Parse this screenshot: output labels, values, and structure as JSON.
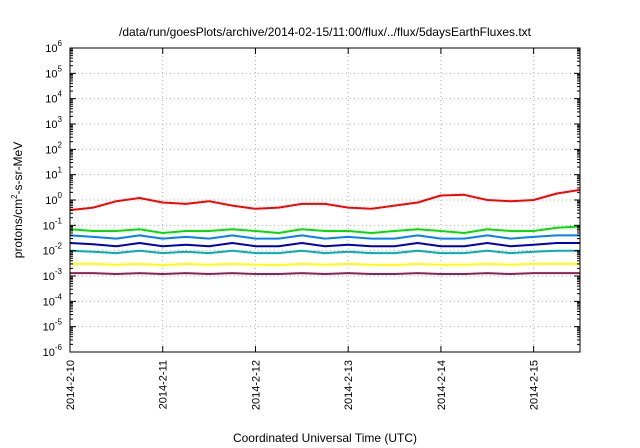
{
  "chart_data": {
    "type": "line",
    "title": "/data/run/goesPlots/archive/2014-02-15/11:00/flux/../flux/5daysEarthFluxes.txt",
    "xlabel": "Coordinated Universal Time (UTC)",
    "ylabel": {
      "pre": "protons/cm",
      "sup": "2",
      "post": "-s-sr-MeV"
    },
    "x_ticks": [
      "2014-2-10",
      "2014-2-11",
      "2014-2-12",
      "2014-2-13",
      "2014-2-14",
      "2014-2-15"
    ],
    "y_ticks": [
      {
        "base": "10",
        "exp": "6"
      },
      {
        "base": "10",
        "exp": "5"
      },
      {
        "base": "10",
        "exp": "4"
      },
      {
        "base": "10",
        "exp": "3"
      },
      {
        "base": "10",
        "exp": "2"
      },
      {
        "base": "10",
        "exp": "1"
      },
      {
        "base": "10",
        "exp": "0"
      },
      {
        "base": "10",
        "exp": "-1"
      },
      {
        "base": "10",
        "exp": "-2"
      },
      {
        "base": "10",
        "exp": "-3"
      },
      {
        "base": "10",
        "exp": "-4"
      },
      {
        "base": "10",
        "exp": "-5"
      },
      {
        "base": "10",
        "exp": "-6"
      }
    ],
    "y_scale": "log",
    "ylim": [
      1e-06,
      1000000.0
    ],
    "xlim": [
      "2014-02-10",
      "2014-02-15 12:00"
    ],
    "grid": true,
    "legend": "none",
    "x": [
      "2014-02-10 00:00",
      "2014-02-10 06:00",
      "2014-02-10 12:00",
      "2014-02-10 18:00",
      "2014-02-11 00:00",
      "2014-02-11 06:00",
      "2014-02-11 12:00",
      "2014-02-11 18:00",
      "2014-02-12 00:00",
      "2014-02-12 06:00",
      "2014-02-12 12:00",
      "2014-02-12 18:00",
      "2014-02-13 00:00",
      "2014-02-13 06:00",
      "2014-02-13 12:00",
      "2014-02-13 18:00",
      "2014-02-14 00:00",
      "2014-02-14 06:00",
      "2014-02-14 12:00",
      "2014-02-14 18:00",
      "2014-02-15 00:00",
      "2014-02-15 06:00",
      "2014-02-15 12:00"
    ],
    "series": [
      {
        "color": "#ff0000",
        "values": [
          0.4,
          0.5,
          0.9,
          1.2,
          0.8,
          0.7,
          0.9,
          0.6,
          0.45,
          0.5,
          0.7,
          0.7,
          0.5,
          0.45,
          0.6,
          0.8,
          1.5,
          1.6,
          1.0,
          0.9,
          1.0,
          1.8,
          2.5
        ]
      },
      {
        "color": "#00e000",
        "values": [
          0.07,
          0.06,
          0.06,
          0.07,
          0.05,
          0.06,
          0.06,
          0.07,
          0.06,
          0.05,
          0.07,
          0.06,
          0.06,
          0.05,
          0.06,
          0.07,
          0.06,
          0.05,
          0.07,
          0.06,
          0.06,
          0.08,
          0.09
        ]
      },
      {
        "color": "#0080ff",
        "values": [
          0.04,
          0.035,
          0.03,
          0.04,
          0.03,
          0.035,
          0.03,
          0.04,
          0.03,
          0.03,
          0.04,
          0.03,
          0.035,
          0.03,
          0.03,
          0.04,
          0.03,
          0.03,
          0.04,
          0.03,
          0.035,
          0.04,
          0.04
        ]
      },
      {
        "color": "#0000c0",
        "values": [
          0.02,
          0.018,
          0.015,
          0.02,
          0.015,
          0.017,
          0.015,
          0.02,
          0.015,
          0.015,
          0.02,
          0.015,
          0.017,
          0.015,
          0.015,
          0.02,
          0.015,
          0.015,
          0.02,
          0.015,
          0.017,
          0.02,
          0.02
        ]
      },
      {
        "color": "#00b0b0",
        "values": [
          0.01,
          0.009,
          0.008,
          0.01,
          0.008,
          0.009,
          0.008,
          0.01,
          0.008,
          0.008,
          0.01,
          0.008,
          0.009,
          0.008,
          0.008,
          0.01,
          0.008,
          0.008,
          0.01,
          0.008,
          0.009,
          0.01,
          0.01
        ]
      },
      {
        "color": "#ffff00",
        "values": [
          0.003,
          0.003,
          0.0028,
          0.003,
          0.0027,
          0.003,
          0.0028,
          0.003,
          0.0028,
          0.0027,
          0.003,
          0.0028,
          0.003,
          0.0028,
          0.0027,
          0.003,
          0.0028,
          0.0028,
          0.003,
          0.0028,
          0.003,
          0.003,
          0.003
        ]
      },
      {
        "color": "#8b2252",
        "values": [
          0.0013,
          0.0013,
          0.0012,
          0.0013,
          0.0012,
          0.0013,
          0.0012,
          0.0013,
          0.0012,
          0.0012,
          0.0013,
          0.0012,
          0.0013,
          0.0012,
          0.0012,
          0.0013,
          0.0012,
          0.0012,
          0.0013,
          0.0012,
          0.0013,
          0.0013,
          0.0013
        ]
      }
    ]
  }
}
